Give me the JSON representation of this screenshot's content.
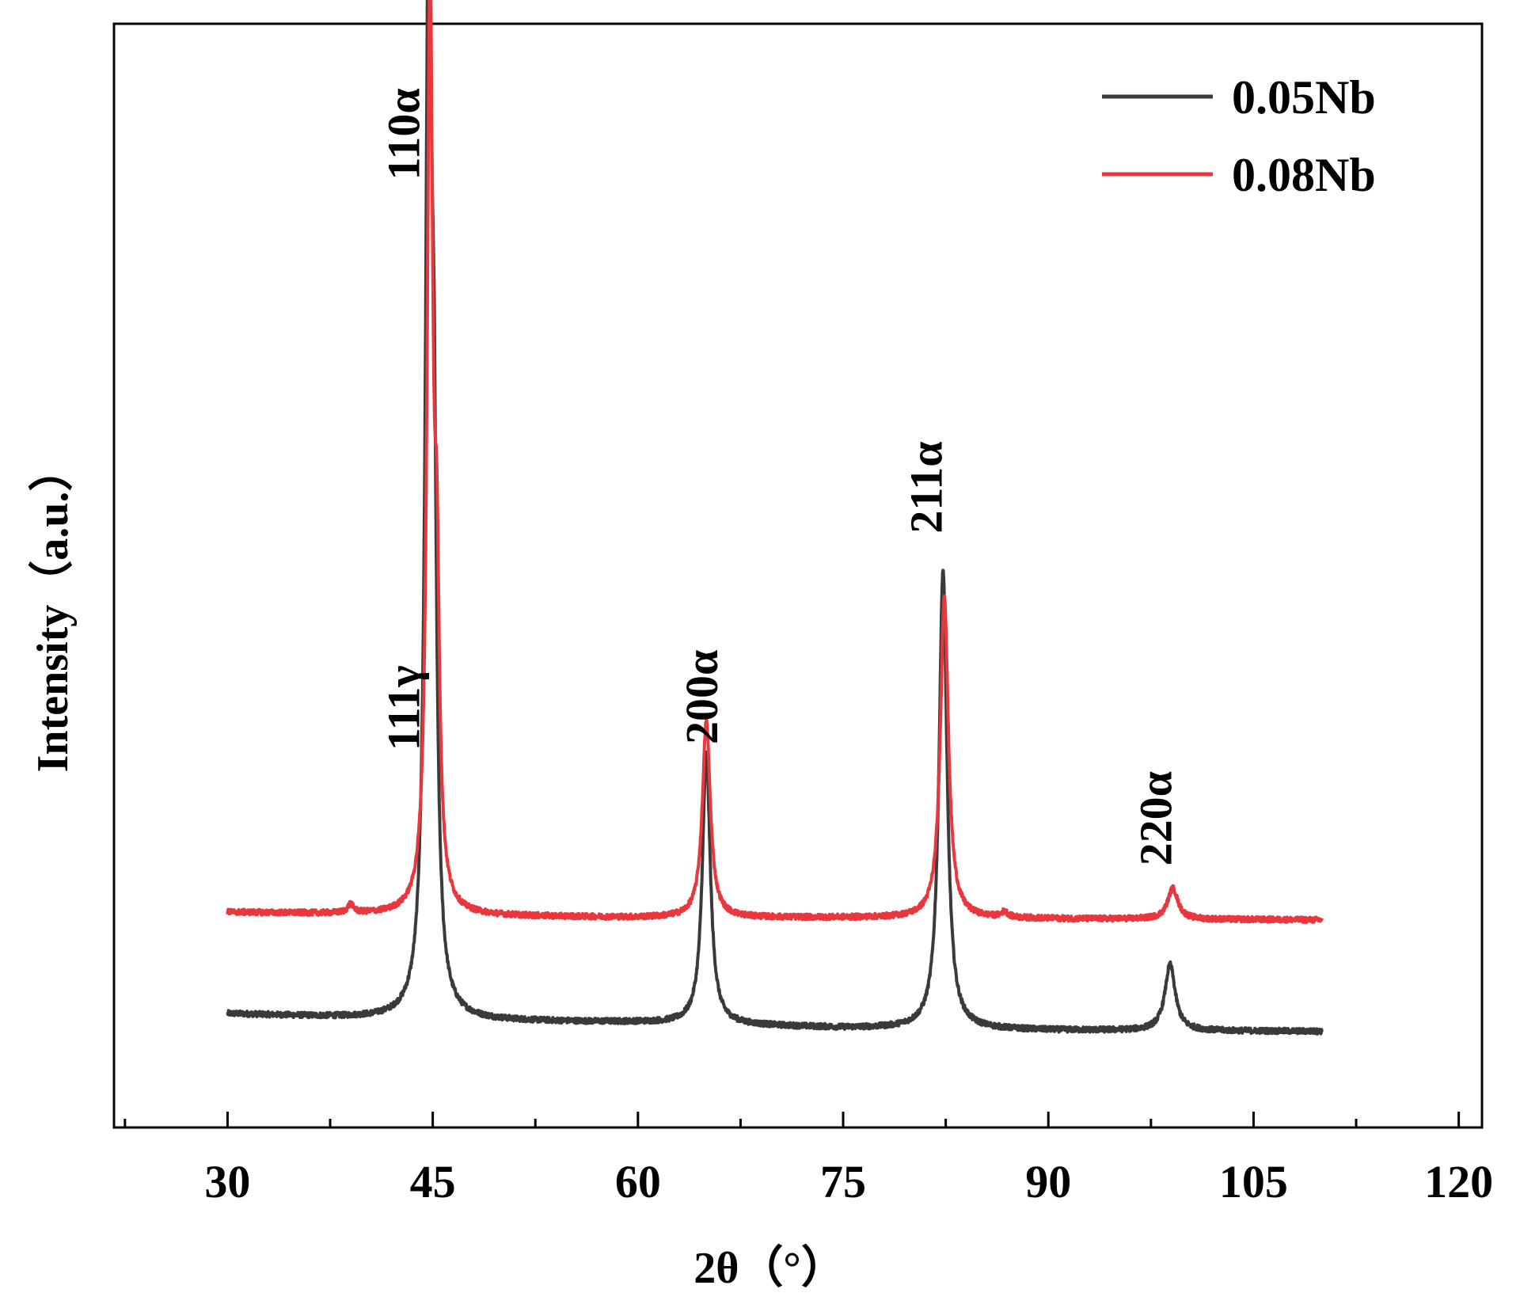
{
  "chart_data": {
    "type": "line",
    "title": "",
    "xlabel": "2θ（°）",
    "ylabel": "Intensity（a.u.）",
    "xlim": [
      21.7,
      121.7
    ],
    "xticks": [
      "30",
      "45",
      "60",
      "75",
      "90",
      "105",
      "120"
    ],
    "xtick_values": [
      30,
      45,
      60,
      75,
      90,
      105,
      120
    ],
    "minor_xticks": [
      22.5,
      37.5,
      52.5,
      67.5,
      82.5,
      97.5,
      112.5
    ],
    "ylim": [
      0,
      1
    ],
    "yticks_shown": false,
    "legend_position": "top-right",
    "series": [
      {
        "name": "0.05Nb",
        "color": "#3a3a3a",
        "baseline": [
          [
            30,
            0.103
          ],
          [
            45,
            0.097
          ],
          [
            60,
            0.095
          ],
          [
            75,
            0.09
          ],
          [
            90,
            0.088
          ],
          [
            110,
            0.087
          ]
        ],
        "peaks": [
          {
            "x": 44.7,
            "height": 0.97,
            "width": 0.28
          },
          {
            "x": 45.1,
            "height": 0.34,
            "width": 0.22
          },
          {
            "x": 65.0,
            "height": 0.245,
            "width": 0.35
          },
          {
            "x": 82.3,
            "height": 0.416,
            "width": 0.35
          },
          {
            "x": 98.9,
            "height": 0.06,
            "width": 0.45
          }
        ],
        "noise": 0.0025
      },
      {
        "name": "0.08Nb",
        "color": "#e8383d",
        "baseline": [
          [
            30,
            0.195
          ],
          [
            45,
            0.192
          ],
          [
            60,
            0.19
          ],
          [
            75,
            0.19
          ],
          [
            90,
            0.189
          ],
          [
            110,
            0.188
          ]
        ],
        "peaks": [
          {
            "x": 39.0,
            "height": 0.008,
            "width": 0.25
          },
          {
            "x": 44.8,
            "height": 0.83,
            "width": 0.25
          },
          {
            "x": 45.3,
            "height": 0.24,
            "width": 0.22
          },
          {
            "x": 65.0,
            "height": 0.178,
            "width": 0.35
          },
          {
            "x": 82.4,
            "height": 0.292,
            "width": 0.35
          },
          {
            "x": 86.8,
            "height": 0.005,
            "width": 0.3
          },
          {
            "x": 99.1,
            "height": 0.028,
            "width": 0.45
          }
        ],
        "noise": 0.0025
      }
    ],
    "annotations": [
      {
        "text": "110α",
        "x": 44.0,
        "y": 0.9
      },
      {
        "text": "111γ",
        "x": 44.0,
        "y": 0.38
      },
      {
        "text": "200α",
        "x": 65.8,
        "y": 0.39
      },
      {
        "text": "211α",
        "x": 82.2,
        "y": 0.58
      },
      {
        "text": "220α",
        "x": 99.0,
        "y": 0.28
      }
    ]
  }
}
